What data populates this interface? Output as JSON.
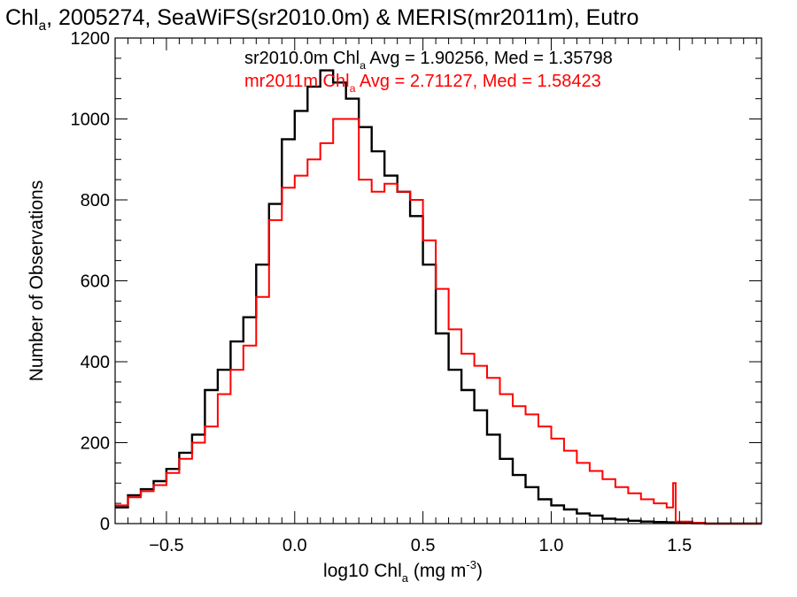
{
  "chart_data": {
    "type": "line",
    "step": true,
    "title_parts": [
      "Chl",
      "a",
      ", 2005274, SeaWiFS(sr2010.0m) & MERIS(mr2011m), Eutro"
    ],
    "xlabel_parts": [
      "log10 Chl",
      "a",
      " (mg m",
      "-3",
      ")"
    ],
    "ylabel": "Number of Observations",
    "xlim": [
      -0.7,
      1.82
    ],
    "ylim": [
      0,
      1200
    ],
    "xticks": [
      -0.5,
      0.0,
      0.5,
      1.0,
      1.5
    ],
    "xtick_labels": [
      "−0.5",
      "0.0",
      "0.5",
      "1.0",
      "1.5"
    ],
    "yticks": [
      0,
      200,
      400,
      600,
      800,
      1000,
      1200
    ],
    "ytick_labels": [
      "0",
      "200",
      "400",
      "600",
      "800",
      "1000",
      "1200"
    ],
    "grid": false,
    "legend_position": "top",
    "series": [
      {
        "color": "#000000",
        "legend_parts": [
          "sr2010.0m Chl",
          "a",
          " Avg = 1.90256, Med = 1.35798"
        ],
        "points": [
          [
            -0.7,
            40
          ],
          [
            -0.65,
            70
          ],
          [
            -0.6,
            85
          ],
          [
            -0.55,
            105
          ],
          [
            -0.5,
            135
          ],
          [
            -0.45,
            175
          ],
          [
            -0.4,
            220
          ],
          [
            -0.35,
            330
          ],
          [
            -0.3,
            380
          ],
          [
            -0.25,
            450
          ],
          [
            -0.2,
            510
          ],
          [
            -0.15,
            640
          ],
          [
            -0.1,
            790
          ],
          [
            -0.05,
            950
          ],
          [
            0.0,
            1020
          ],
          [
            0.05,
            1080
          ],
          [
            0.1,
            1120
          ],
          [
            0.15,
            1090
          ],
          [
            0.2,
            1050
          ],
          [
            0.25,
            980
          ],
          [
            0.3,
            920
          ],
          [
            0.35,
            860
          ],
          [
            0.4,
            820
          ],
          [
            0.45,
            760
          ],
          [
            0.5,
            640
          ],
          [
            0.55,
            470
          ],
          [
            0.6,
            380
          ],
          [
            0.65,
            330
          ],
          [
            0.7,
            280
          ],
          [
            0.75,
            220
          ],
          [
            0.8,
            160
          ],
          [
            0.85,
            120
          ],
          [
            0.9,
            90
          ],
          [
            0.95,
            60
          ],
          [
            1.0,
            45
          ],
          [
            1.05,
            35
          ],
          [
            1.1,
            25
          ],
          [
            1.15,
            20
          ],
          [
            1.2,
            12
          ],
          [
            1.25,
            10
          ],
          [
            1.3,
            7
          ],
          [
            1.35,
            5
          ],
          [
            1.4,
            4
          ],
          [
            1.45,
            3
          ],
          [
            1.5,
            2
          ],
          [
            1.55,
            1
          ],
          [
            1.6,
            0
          ],
          [
            1.82,
            0
          ]
        ]
      },
      {
        "color": "#ff0000",
        "legend_parts": [
          "mr2011m Chl",
          "a",
          " Avg = 2.71127, Med = 1.58423"
        ],
        "points": [
          [
            -0.7,
            45
          ],
          [
            -0.65,
            65
          ],
          [
            -0.6,
            80
          ],
          [
            -0.55,
            95
          ],
          [
            -0.5,
            125
          ],
          [
            -0.45,
            160
          ],
          [
            -0.4,
            200
          ],
          [
            -0.35,
            240
          ],
          [
            -0.3,
            320
          ],
          [
            -0.25,
            380
          ],
          [
            -0.2,
            440
          ],
          [
            -0.15,
            560
          ],
          [
            -0.1,
            750
          ],
          [
            -0.05,
            830
          ],
          [
            0.0,
            860
          ],
          [
            0.05,
            900
          ],
          [
            0.1,
            940
          ],
          [
            0.15,
            1000
          ],
          [
            0.2,
            1000
          ],
          [
            0.25,
            850
          ],
          [
            0.3,
            820
          ],
          [
            0.35,
            840
          ],
          [
            0.4,
            820
          ],
          [
            0.45,
            800
          ],
          [
            0.5,
            700
          ],
          [
            0.55,
            580
          ],
          [
            0.6,
            480
          ],
          [
            0.65,
            420
          ],
          [
            0.7,
            390
          ],
          [
            0.75,
            360
          ],
          [
            0.8,
            320
          ],
          [
            0.85,
            290
          ],
          [
            0.9,
            270
          ],
          [
            0.95,
            240
          ],
          [
            1.0,
            210
          ],
          [
            1.05,
            180
          ],
          [
            1.1,
            150
          ],
          [
            1.15,
            130
          ],
          [
            1.2,
            110
          ],
          [
            1.25,
            90
          ],
          [
            1.3,
            75
          ],
          [
            1.35,
            60
          ],
          [
            1.4,
            50
          ],
          [
            1.45,
            40
          ],
          [
            1.475,
            100
          ],
          [
            1.485,
            5
          ],
          [
            1.55,
            2
          ],
          [
            1.6,
            0
          ],
          [
            1.82,
            0
          ]
        ]
      }
    ]
  }
}
